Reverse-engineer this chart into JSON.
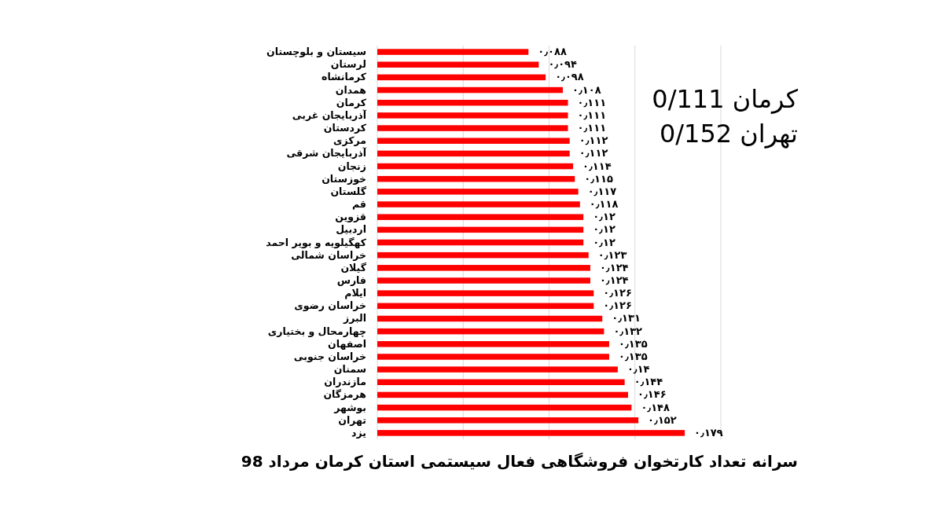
{
  "chart_data": {
    "type": "bar",
    "orientation": "horizontal",
    "title": "سرانه تعداد کارتخوان فروشگاهی فعال سیستمی استان کرمان مرداد 98",
    "categories": [
      "سیستان و بلوچستان",
      "لرستان",
      "کرمانشاه",
      "همدان",
      "کرمان",
      "آذربایجان غربی",
      "کردستان",
      "مرکزی",
      "آذربایجان شرقی",
      "زنجان",
      "خوزستان",
      "گلستان",
      "قم",
      "قزوین",
      "اردبیل",
      "کهگیلویه و بویر احمد",
      "خراسان شمالی",
      "گیلان",
      "فارس",
      "ایلام",
      "خراسان رضوی",
      "البرز",
      "چهارمحال و بختیاری",
      "اصفهان",
      "خراسان جنوبی",
      "سمنان",
      "مازندران",
      "هرمزگان",
      "بوشهر",
      "تهران",
      "یزد"
    ],
    "values": [
      0.088,
      0.094,
      0.098,
      0.108,
      0.111,
      0.111,
      0.111,
      0.112,
      0.112,
      0.114,
      0.115,
      0.117,
      0.118,
      0.12,
      0.12,
      0.12,
      0.123,
      0.124,
      0.124,
      0.126,
      0.126,
      0.131,
      0.132,
      0.135,
      0.135,
      0.14,
      0.144,
      0.146,
      0.148,
      0.152,
      0.179
    ],
    "value_labels": [
      "۰٫۰۸۸",
      "۰٫۰۹۴",
      "۰٫۰۹۸",
      "۰٫۱۰۸",
      "۰٫۱۱۱",
      "۰٫۱۱۱",
      "۰٫۱۱۱",
      "۰٫۱۱۲",
      "۰٫۱۱۲",
      "۰٫۱۱۴",
      "۰٫۱۱۵",
      "۰٫۱۱۷",
      "۰٫۱۱۸",
      "۰٫۱۲",
      "۰٫۱۲",
      "۰٫۱۲",
      "۰٫۱۲۳",
      "۰٫۱۲۴",
      "۰٫۱۲۴",
      "۰٫۱۲۶",
      "۰٫۱۲۶",
      "۰٫۱۳۱",
      "۰٫۱۳۲",
      "۰٫۱۳۵",
      "۰٫۱۳۵",
      "۰٫۱۴",
      "۰٫۱۴۴",
      "۰٫۱۴۶",
      "۰٫۱۴۸",
      "۰٫۱۵۲",
      "۰٫۱۷۹"
    ],
    "color": "#ff0000",
    "xlim": [
      0,
      0.2
    ],
    "xticks": [
      {
        "value": 0,
        "label": null
      },
      {
        "value": 0.05,
        "label": null
      },
      {
        "value": 0.1,
        "label": null
      },
      {
        "value": 0.15,
        "label": null
      },
      {
        "value": 0.2,
        "label": null
      }
    ],
    "grid": "x",
    "tick_labels": "y",
    "annotations": [
      "کرمان 0/111",
      "تهران 0/152"
    ]
  }
}
